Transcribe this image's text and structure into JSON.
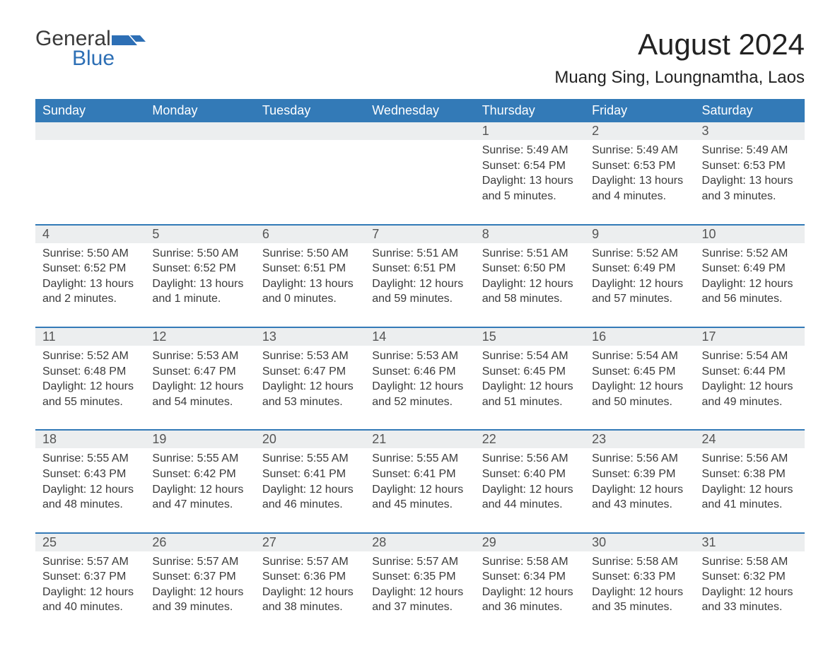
{
  "brand": {
    "word1": "General",
    "word2": "Blue",
    "flag_color": "#2d6fb5"
  },
  "title": "August 2024",
  "location": "Muang Sing, Loungnamtha, Laos",
  "colors": {
    "header_bg": "#337ab7",
    "header_text": "#ffffff",
    "daynum_bg": "#eceeef",
    "rule": "#337ab7",
    "body_text": "#3a3a3a",
    "brand_blue": "#2d6fb5",
    "page_bg": "#ffffff"
  },
  "typography": {
    "title_fontsize": 42,
    "location_fontsize": 24,
    "weekday_fontsize": 18,
    "daynum_fontsize": 18,
    "cell_fontsize": 16,
    "logo_fontsize": 30
  },
  "weekdays": [
    "Sunday",
    "Monday",
    "Tuesday",
    "Wednesday",
    "Thursday",
    "Friday",
    "Saturday"
  ],
  "weeks": [
    [
      null,
      null,
      null,
      null,
      {
        "n": "1",
        "sunrise": "5:49 AM",
        "sunset": "6:54 PM",
        "daylight": "13 hours and 5 minutes."
      },
      {
        "n": "2",
        "sunrise": "5:49 AM",
        "sunset": "6:53 PM",
        "daylight": "13 hours and 4 minutes."
      },
      {
        "n": "3",
        "sunrise": "5:49 AM",
        "sunset": "6:53 PM",
        "daylight": "13 hours and 3 minutes."
      }
    ],
    [
      {
        "n": "4",
        "sunrise": "5:50 AM",
        "sunset": "6:52 PM",
        "daylight": "13 hours and 2 minutes."
      },
      {
        "n": "5",
        "sunrise": "5:50 AM",
        "sunset": "6:52 PM",
        "daylight": "13 hours and 1 minute."
      },
      {
        "n": "6",
        "sunrise": "5:50 AM",
        "sunset": "6:51 PM",
        "daylight": "13 hours and 0 minutes."
      },
      {
        "n": "7",
        "sunrise": "5:51 AM",
        "sunset": "6:51 PM",
        "daylight": "12 hours and 59 minutes."
      },
      {
        "n": "8",
        "sunrise": "5:51 AM",
        "sunset": "6:50 PM",
        "daylight": "12 hours and 58 minutes."
      },
      {
        "n": "9",
        "sunrise": "5:52 AM",
        "sunset": "6:49 PM",
        "daylight": "12 hours and 57 minutes."
      },
      {
        "n": "10",
        "sunrise": "5:52 AM",
        "sunset": "6:49 PM",
        "daylight": "12 hours and 56 minutes."
      }
    ],
    [
      {
        "n": "11",
        "sunrise": "5:52 AM",
        "sunset": "6:48 PM",
        "daylight": "12 hours and 55 minutes."
      },
      {
        "n": "12",
        "sunrise": "5:53 AM",
        "sunset": "6:47 PM",
        "daylight": "12 hours and 54 minutes."
      },
      {
        "n": "13",
        "sunrise": "5:53 AM",
        "sunset": "6:47 PM",
        "daylight": "12 hours and 53 minutes."
      },
      {
        "n": "14",
        "sunrise": "5:53 AM",
        "sunset": "6:46 PM",
        "daylight": "12 hours and 52 minutes."
      },
      {
        "n": "15",
        "sunrise": "5:54 AM",
        "sunset": "6:45 PM",
        "daylight": "12 hours and 51 minutes."
      },
      {
        "n": "16",
        "sunrise": "5:54 AM",
        "sunset": "6:45 PM",
        "daylight": "12 hours and 50 minutes."
      },
      {
        "n": "17",
        "sunrise": "5:54 AM",
        "sunset": "6:44 PM",
        "daylight": "12 hours and 49 minutes."
      }
    ],
    [
      {
        "n": "18",
        "sunrise": "5:55 AM",
        "sunset": "6:43 PM",
        "daylight": "12 hours and 48 minutes."
      },
      {
        "n": "19",
        "sunrise": "5:55 AM",
        "sunset": "6:42 PM",
        "daylight": "12 hours and 47 minutes."
      },
      {
        "n": "20",
        "sunrise": "5:55 AM",
        "sunset": "6:41 PM",
        "daylight": "12 hours and 46 minutes."
      },
      {
        "n": "21",
        "sunrise": "5:55 AM",
        "sunset": "6:41 PM",
        "daylight": "12 hours and 45 minutes."
      },
      {
        "n": "22",
        "sunrise": "5:56 AM",
        "sunset": "6:40 PM",
        "daylight": "12 hours and 44 minutes."
      },
      {
        "n": "23",
        "sunrise": "5:56 AM",
        "sunset": "6:39 PM",
        "daylight": "12 hours and 43 minutes."
      },
      {
        "n": "24",
        "sunrise": "5:56 AM",
        "sunset": "6:38 PM",
        "daylight": "12 hours and 41 minutes."
      }
    ],
    [
      {
        "n": "25",
        "sunrise": "5:57 AM",
        "sunset": "6:37 PM",
        "daylight": "12 hours and 40 minutes."
      },
      {
        "n": "26",
        "sunrise": "5:57 AM",
        "sunset": "6:37 PM",
        "daylight": "12 hours and 39 minutes."
      },
      {
        "n": "27",
        "sunrise": "5:57 AM",
        "sunset": "6:36 PM",
        "daylight": "12 hours and 38 minutes."
      },
      {
        "n": "28",
        "sunrise": "5:57 AM",
        "sunset": "6:35 PM",
        "daylight": "12 hours and 37 minutes."
      },
      {
        "n": "29",
        "sunrise": "5:58 AM",
        "sunset": "6:34 PM",
        "daylight": "12 hours and 36 minutes."
      },
      {
        "n": "30",
        "sunrise": "5:58 AM",
        "sunset": "6:33 PM",
        "daylight": "12 hours and 35 minutes."
      },
      {
        "n": "31",
        "sunrise": "5:58 AM",
        "sunset": "6:32 PM",
        "daylight": "12 hours and 33 minutes."
      }
    ]
  ],
  "labels": {
    "sunrise": "Sunrise: ",
    "sunset": "Sunset: ",
    "daylight": "Daylight: "
  }
}
